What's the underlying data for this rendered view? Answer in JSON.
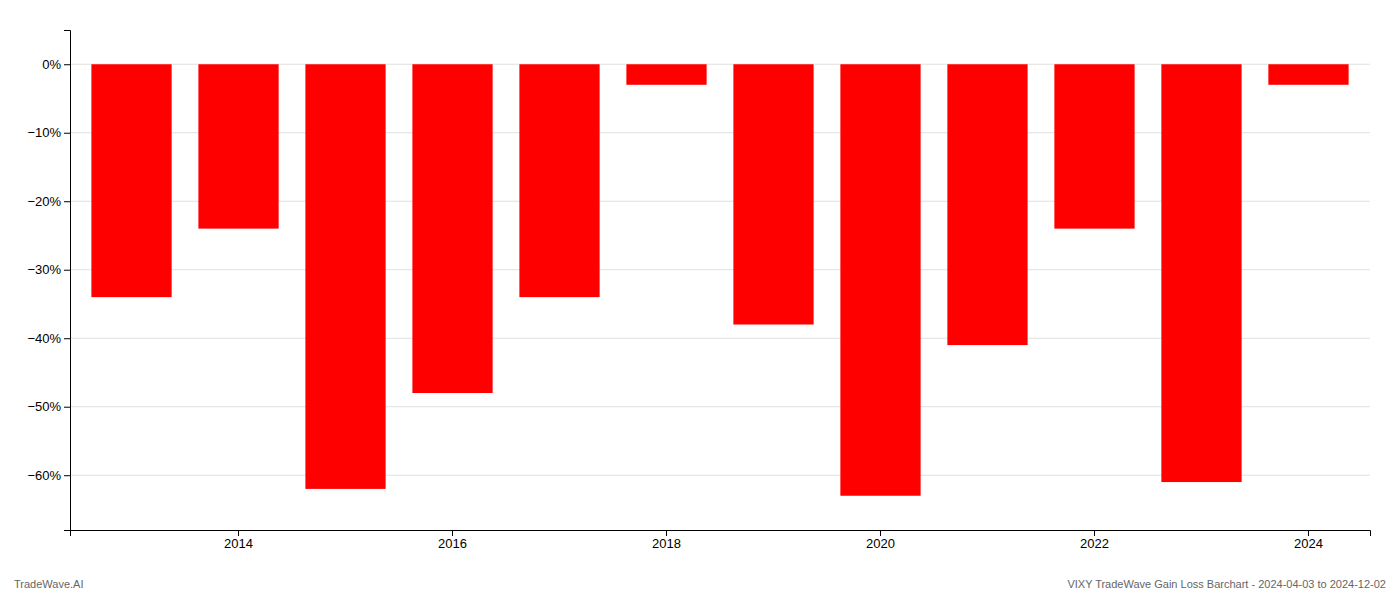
{
  "chart_data": {
    "type": "bar",
    "categories": [
      null,
      "2014",
      null,
      "2016",
      null,
      "2018",
      null,
      "2020",
      null,
      "2022",
      null,
      "2024"
    ],
    "values": [
      -34,
      -24,
      -62,
      -48,
      -34,
      -3,
      -38,
      -63,
      -41,
      -24,
      -61,
      -3
    ],
    "color": "#ff0000",
    "ylim": [
      -68,
      5
    ],
    "yticks": [
      {
        "value": 0,
        "label": "0%"
      },
      {
        "value": -10,
        "label": "−10%"
      },
      {
        "value": -20,
        "label": "−20%"
      },
      {
        "value": -30,
        "label": "−30%"
      },
      {
        "value": -40,
        "label": "−40%"
      },
      {
        "value": -50,
        "label": "−50%"
      },
      {
        "value": -60,
        "label": "−60%"
      }
    ],
    "grid": true,
    "annotations": [
      "TradeWave.AI",
      "VIXY TradeWave Gain Loss Barchart - 2024-04-03 to 2024-12-02"
    ]
  }
}
